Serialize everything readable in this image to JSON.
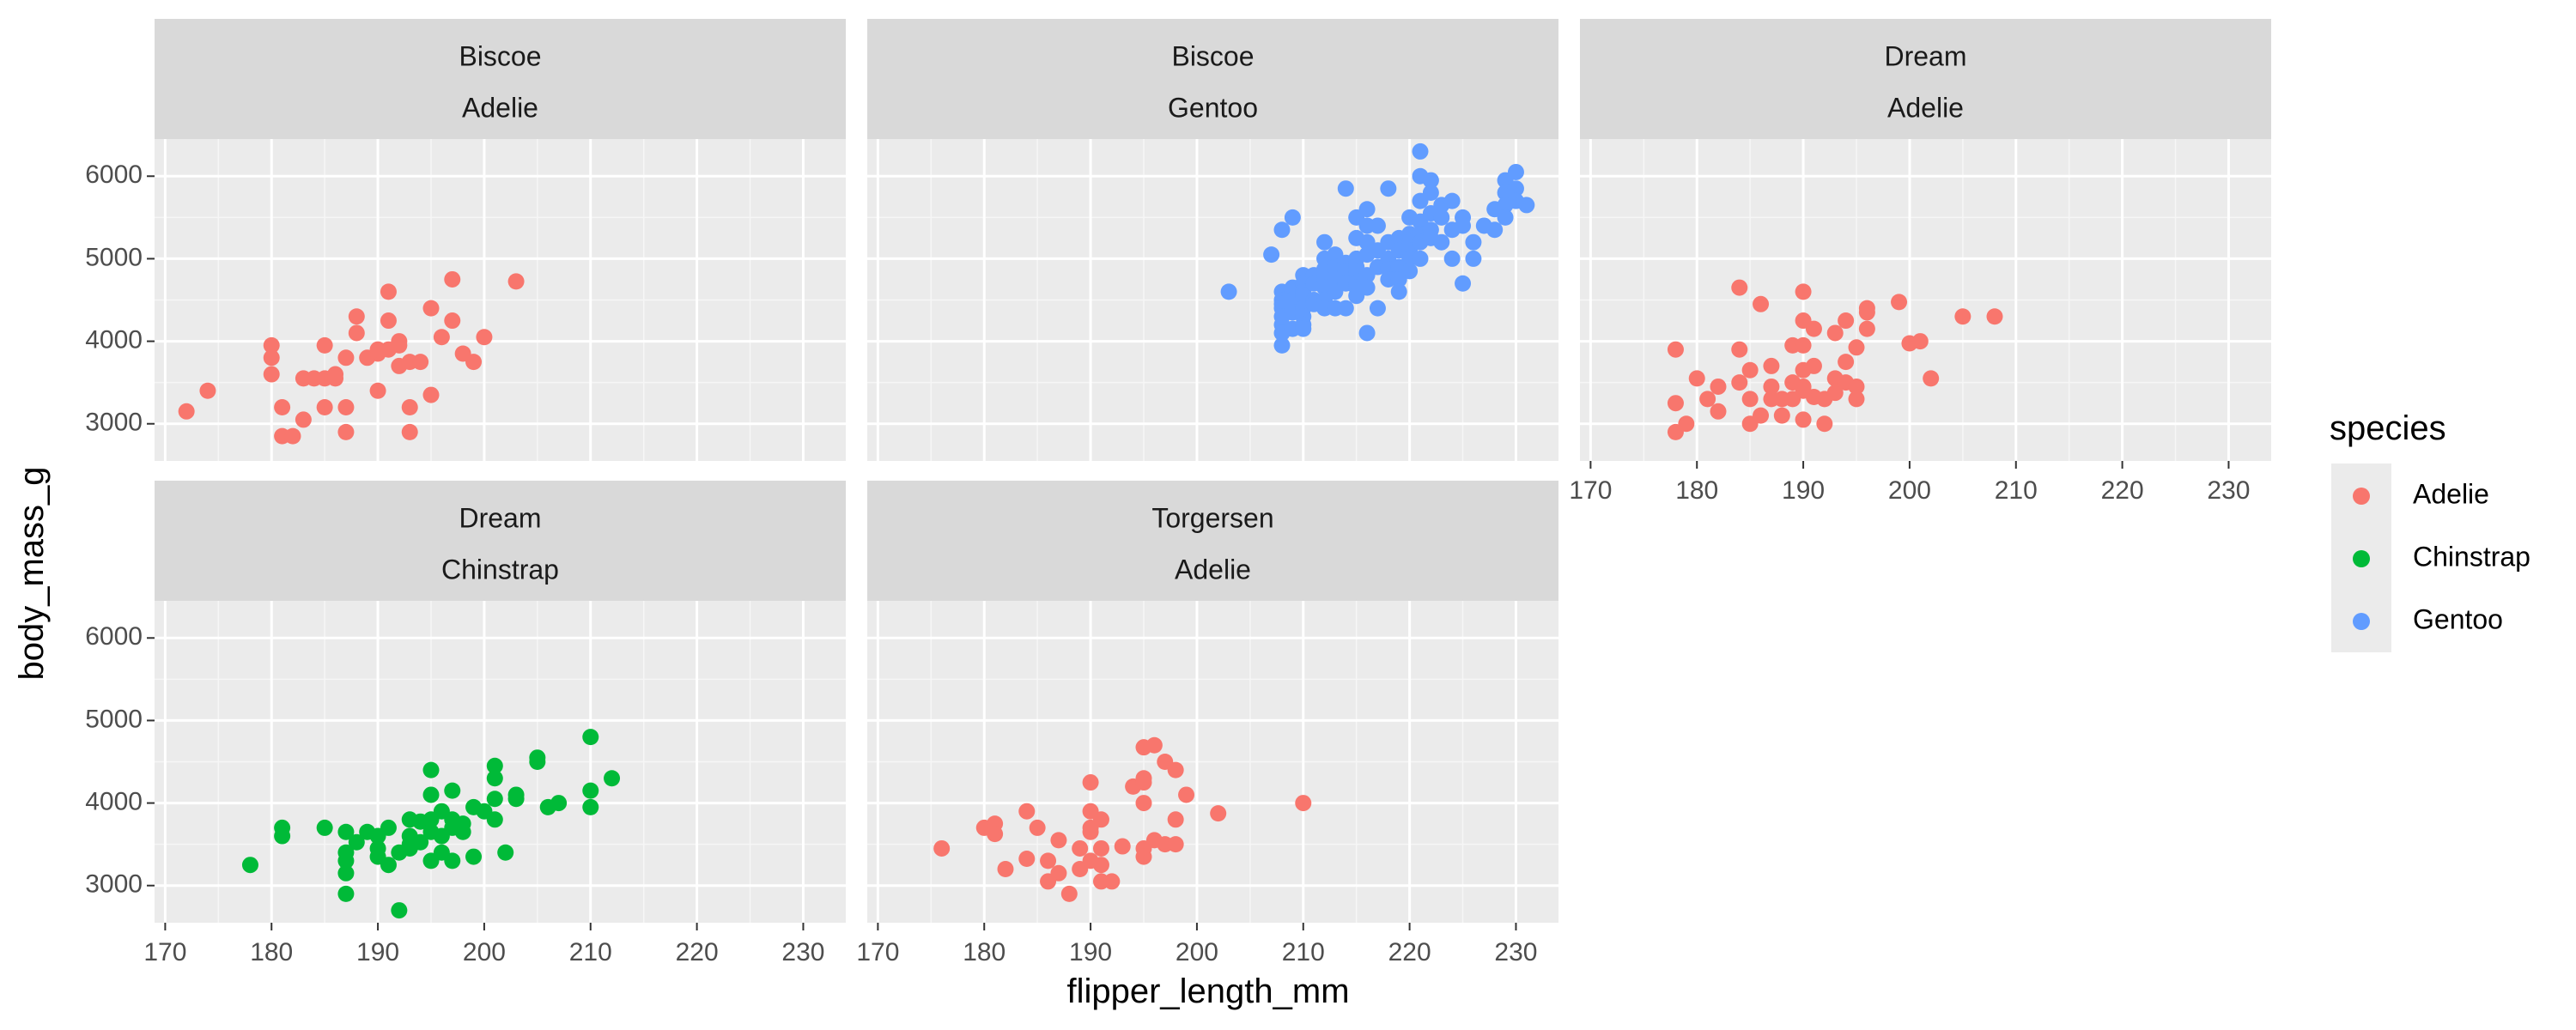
{
  "chart_data": {
    "type": "scatter",
    "xlabel": "flipper_length_mm",
    "ylabel": "body_mass_g",
    "xlim": [
      169,
      234
    ],
    "ylim": [
      2550,
      6450
    ],
    "x_ticks": [
      170,
      180,
      190,
      200,
      210,
      220,
      230
    ],
    "y_ticks": [
      3000,
      4000,
      5000,
      6000
    ],
    "grid": true,
    "legend": {
      "title": "species",
      "position": "right",
      "items": [
        {
          "label": "Adelie",
          "color": "#F8766D"
        },
        {
          "label": "Chinstrap",
          "color": "#00BA38"
        },
        {
          "label": "Gentoo",
          "color": "#619CFF"
        }
      ]
    },
    "panels": [
      {
        "island": "Biscoe",
        "species": "Adelie",
        "color": "#F8766D",
        "points": [
          [
            172,
            3150
          ],
          [
            174,
            3400
          ],
          [
            180,
            3950
          ],
          [
            180,
            3800
          ],
          [
            180,
            3600
          ],
          [
            181,
            3200
          ],
          [
            181,
            2850
          ],
          [
            182,
            2850
          ],
          [
            183,
            3050
          ],
          [
            183,
            3550
          ],
          [
            184,
            3550
          ],
          [
            185,
            3200
          ],
          [
            185,
            3550
          ],
          [
            185,
            3950
          ],
          [
            186,
            3550
          ],
          [
            186,
            3600
          ],
          [
            187,
            3200
          ],
          [
            187,
            2900
          ],
          [
            187,
            3800
          ],
          [
            188,
            4300
          ],
          [
            188,
            4100
          ],
          [
            189,
            3800
          ],
          [
            190,
            3850
          ],
          [
            190,
            3400
          ],
          [
            190,
            3900
          ],
          [
            191,
            4250
          ],
          [
            191,
            3900
          ],
          [
            191,
            4600
          ],
          [
            192,
            3700
          ],
          [
            192,
            3950
          ],
          [
            192,
            4000
          ],
          [
            193,
            3750
          ],
          [
            193,
            3200
          ],
          [
            193,
            2900
          ],
          [
            194,
            3750
          ],
          [
            195,
            3350
          ],
          [
            195,
            4400
          ],
          [
            196,
            4050
          ],
          [
            197,
            4750
          ],
          [
            197,
            4250
          ],
          [
            198,
            3850
          ],
          [
            199,
            3750
          ],
          [
            200,
            4050
          ],
          [
            203,
            4725
          ]
        ]
      },
      {
        "island": "Biscoe",
        "species": "Gentoo",
        "color": "#619CFF",
        "points": [
          [
            203,
            4600
          ],
          [
            207,
            5050
          ],
          [
            208,
            5350
          ],
          [
            208,
            4600
          ],
          [
            208,
            4500
          ],
          [
            208,
            4450
          ],
          [
            208,
            4400
          ],
          [
            208,
            4300
          ],
          [
            208,
            4200
          ],
          [
            208,
            4100
          ],
          [
            208,
            3950
          ],
          [
            209,
            5500
          ],
          [
            209,
            4650
          ],
          [
            209,
            4600
          ],
          [
            209,
            4500
          ],
          [
            209,
            4350
          ],
          [
            209,
            4150
          ],
          [
            210,
            4800
          ],
          [
            210,
            4700
          ],
          [
            210,
            4600
          ],
          [
            210,
            4550
          ],
          [
            210,
            4400
          ],
          [
            210,
            4300
          ],
          [
            210,
            4200
          ],
          [
            210,
            4150
          ],
          [
            211,
            4800
          ],
          [
            211,
            4700
          ],
          [
            211,
            4500
          ],
          [
            211,
            4450
          ],
          [
            212,
            5200
          ],
          [
            212,
            5000
          ],
          [
            212,
            4875
          ],
          [
            212,
            4750
          ],
          [
            212,
            4650
          ],
          [
            212,
            4500
          ],
          [
            212,
            4400
          ],
          [
            213,
            5050
          ],
          [
            213,
            4900
          ],
          [
            213,
            4750
          ],
          [
            213,
            4600
          ],
          [
            213,
            4400
          ],
          [
            214,
            5850
          ],
          [
            214,
            4950
          ],
          [
            214,
            4850
          ],
          [
            214,
            4700
          ],
          [
            214,
            4400
          ],
          [
            215,
            5500
          ],
          [
            215,
            5250
          ],
          [
            215,
            5000
          ],
          [
            215,
            4900
          ],
          [
            215,
            4850
          ],
          [
            215,
            4700
          ],
          [
            215,
            4650
          ],
          [
            215,
            4550
          ],
          [
            216,
            5600
          ],
          [
            216,
            5400
          ],
          [
            216,
            5200
          ],
          [
            216,
            5050
          ],
          [
            216,
            4800
          ],
          [
            216,
            4650
          ],
          [
            216,
            4100
          ],
          [
            217,
            5400
          ],
          [
            217,
            5100
          ],
          [
            217,
            4900
          ],
          [
            217,
            4400
          ],
          [
            218,
            5850
          ],
          [
            218,
            5200
          ],
          [
            218,
            5000
          ],
          [
            218,
            4875
          ],
          [
            218,
            4750
          ],
          [
            219,
            5250
          ],
          [
            219,
            5100
          ],
          [
            219,
            4900
          ],
          [
            219,
            4750
          ],
          [
            219,
            4600
          ],
          [
            220,
            5500
          ],
          [
            220,
            5300
          ],
          [
            220,
            5200
          ],
          [
            220,
            5100
          ],
          [
            220,
            5000
          ],
          [
            220,
            4850
          ],
          [
            221,
            6000
          ],
          [
            221,
            5700
          ],
          [
            221,
            5450
          ],
          [
            221,
            5300
          ],
          [
            221,
            5200
          ],
          [
            221,
            5000
          ],
          [
            221,
            6300
          ],
          [
            222,
            5950
          ],
          [
            222,
            5800
          ],
          [
            222,
            5550
          ],
          [
            222,
            5350
          ],
          [
            222,
            5250
          ],
          [
            223,
            5650
          ],
          [
            223,
            5500
          ],
          [
            223,
            5200
          ],
          [
            224,
            5700
          ],
          [
            224,
            5350
          ],
          [
            224,
            5000
          ],
          [
            225,
            5500
          ],
          [
            225,
            5400
          ],
          [
            225,
            4700
          ],
          [
            226,
            5200
          ],
          [
            226,
            5000
          ],
          [
            227,
            5400
          ],
          [
            228,
            5600
          ],
          [
            228,
            5350
          ],
          [
            229,
            5950
          ],
          [
            229,
            5800
          ],
          [
            229,
            5650
          ],
          [
            229,
            5500
          ],
          [
            230,
            6050
          ],
          [
            230,
            5850
          ],
          [
            230,
            5700
          ],
          [
            231,
            5650
          ]
        ]
      },
      {
        "island": "Dream",
        "species": "Adelie",
        "color": "#F8766D",
        "points": [
          [
            178,
            3900
          ],
          [
            178,
            3250
          ],
          [
            178,
            2900
          ],
          [
            179,
            3000
          ],
          [
            180,
            3550
          ],
          [
            181,
            3300
          ],
          [
            182,
            3450
          ],
          [
            182,
            3150
          ],
          [
            184,
            3900
          ],
          [
            184,
            3500
          ],
          [
            184,
            4650
          ],
          [
            185,
            3000
          ],
          [
            185,
            3650
          ],
          [
            185,
            3300
          ],
          [
            186,
            3100
          ],
          [
            186,
            4450
          ],
          [
            187,
            3700
          ],
          [
            187,
            3450
          ],
          [
            187,
            3300
          ],
          [
            188,
            3300
          ],
          [
            188,
            3100
          ],
          [
            189,
            3500
          ],
          [
            189,
            3300
          ],
          [
            189,
            3950
          ],
          [
            190,
            3450
          ],
          [
            190,
            3400
          ],
          [
            190,
            3050
          ],
          [
            190,
            3650
          ],
          [
            190,
            3950
          ],
          [
            190,
            4600
          ],
          [
            190,
            4250
          ],
          [
            191,
            3700
          ],
          [
            191,
            3325
          ],
          [
            191,
            4150
          ],
          [
            192,
            3300
          ],
          [
            192,
            3000
          ],
          [
            193,
            3550
          ],
          [
            193,
            3375
          ],
          [
            193,
            4100
          ],
          [
            194,
            3750
          ],
          [
            194,
            3500
          ],
          [
            194,
            4250
          ],
          [
            195,
            3450
          ],
          [
            195,
            3300
          ],
          [
            195,
            3925
          ],
          [
            196,
            4350
          ],
          [
            196,
            4150
          ],
          [
            196,
            4400
          ],
          [
            199,
            4475
          ],
          [
            200,
            3975
          ],
          [
            201,
            4000
          ],
          [
            202,
            3550
          ],
          [
            205,
            4300
          ],
          [
            208,
            4300
          ]
        ]
      },
      {
        "island": "Dream",
        "species": "Chinstrap",
        "color": "#00BA38",
        "points": [
          [
            178,
            3250
          ],
          [
            181,
            3700
          ],
          [
            181,
            3600
          ],
          [
            185,
            3700
          ],
          [
            187,
            3650
          ],
          [
            187,
            3400
          ],
          [
            187,
            3300
          ],
          [
            187,
            3150
          ],
          [
            187,
            2900
          ],
          [
            188,
            3525
          ],
          [
            189,
            3650
          ],
          [
            190,
            3600
          ],
          [
            190,
            3450
          ],
          [
            190,
            3350
          ],
          [
            191,
            3700
          ],
          [
            191,
            3250
          ],
          [
            192,
            3400
          ],
          [
            192,
            2700
          ],
          [
            193,
            3800
          ],
          [
            193,
            3600
          ],
          [
            193,
            3500
          ],
          [
            193,
            3450
          ],
          [
            194,
            3775
          ],
          [
            194,
            3525
          ],
          [
            195,
            4400
          ],
          [
            195,
            4100
          ],
          [
            195,
            3800
          ],
          [
            195,
            3650
          ],
          [
            195,
            3300
          ],
          [
            196,
            3900
          ],
          [
            196,
            3600
          ],
          [
            196,
            3400
          ],
          [
            197,
            4150
          ],
          [
            197,
            3800
          ],
          [
            197,
            3700
          ],
          [
            197,
            3300
          ],
          [
            198,
            3750
          ],
          [
            198,
            3650
          ],
          [
            199,
            3950
          ],
          [
            199,
            3350
          ],
          [
            200,
            3900
          ],
          [
            201,
            4450
          ],
          [
            201,
            4300
          ],
          [
            201,
            4050
          ],
          [
            201,
            3800
          ],
          [
            202,
            3400
          ],
          [
            203,
            4100
          ],
          [
            203,
            4050
          ],
          [
            205,
            4550
          ],
          [
            205,
            4500
          ],
          [
            206,
            3950
          ],
          [
            207,
            4000
          ],
          [
            210,
            4800
          ],
          [
            210,
            4150
          ],
          [
            210,
            3950
          ],
          [
            212,
            4300
          ]
        ]
      },
      {
        "island": "Torgersen",
        "species": "Adelie",
        "color": "#F8766D",
        "points": [
          [
            176,
            3450
          ],
          [
            180,
            3700
          ],
          [
            181,
            3750
          ],
          [
            181,
            3625
          ],
          [
            182,
            3200
          ],
          [
            184,
            3900
          ],
          [
            184,
            3325
          ],
          [
            185,
            3700
          ],
          [
            186,
            3300
          ],
          [
            186,
            3050
          ],
          [
            187,
            3550
          ],
          [
            187,
            3150
          ],
          [
            188,
            2900
          ],
          [
            189,
            3450
          ],
          [
            189,
            3200
          ],
          [
            190,
            3650
          ],
          [
            190,
            3300
          ],
          [
            190,
            3700
          ],
          [
            190,
            4250
          ],
          [
            190,
            3900
          ],
          [
            191,
            3800
          ],
          [
            191,
            3050
          ],
          [
            191,
            3250
          ],
          [
            191,
            3450
          ],
          [
            192,
            3050
          ],
          [
            193,
            3475
          ],
          [
            194,
            4200
          ],
          [
            195,
            4250
          ],
          [
            195,
            4300
          ],
          [
            195,
            4000
          ],
          [
            195,
            3450
          ],
          [
            195,
            3350
          ],
          [
            195,
            4675
          ],
          [
            196,
            4700
          ],
          [
            196,
            3550
          ],
          [
            197,
            4500
          ],
          [
            197,
            3500
          ],
          [
            198,
            4400
          ],
          [
            198,
            3800
          ],
          [
            198,
            3500
          ],
          [
            199,
            4100
          ],
          [
            202,
            3875
          ],
          [
            210,
            4000
          ]
        ]
      }
    ]
  }
}
